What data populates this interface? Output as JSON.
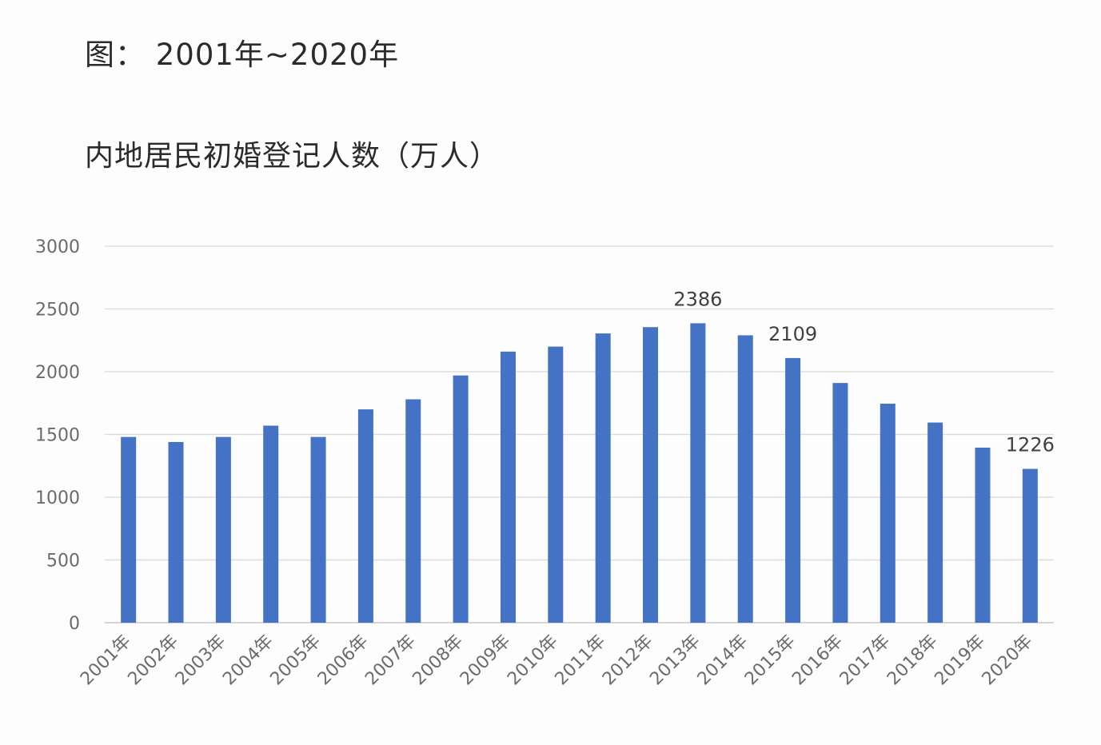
{
  "caption": "图： 2001年~2020年",
  "chart_data": {
    "type": "bar",
    "title": "内地居民初婚登记人数（万人）",
    "xlabel": "",
    "ylabel": "",
    "ylim": [
      0,
      3000
    ],
    "yticks": [
      "0",
      "500",
      "1000",
      "1500",
      "2000",
      "2500",
      "3000"
    ],
    "grid": true,
    "legend": "none",
    "bar_color": "#4472c4",
    "grid_color": "#d9d9d9",
    "categories": [
      "2001年",
      "2002年",
      "2003年",
      "2004年",
      "2005年",
      "2006年",
      "2007年",
      "2008年",
      "2009年",
      "2010年",
      "2011年",
      "2012年",
      "2013年",
      "2014年",
      "2015年",
      "2016年",
      "2017年",
      "2018年",
      "2019年",
      "2020年"
    ],
    "values": [
      1480,
      1440,
      1480,
      1570,
      1480,
      1700,
      1780,
      1970,
      2160,
      2200,
      2305,
      2355,
      2386,
      2290,
      2109,
      1910,
      1745,
      1595,
      1395,
      1226
    ],
    "data_labels": [
      {
        "index": 12,
        "text": "2386"
      },
      {
        "index": 14,
        "text": "2109"
      },
      {
        "index": 19,
        "text": "1226"
      }
    ]
  }
}
